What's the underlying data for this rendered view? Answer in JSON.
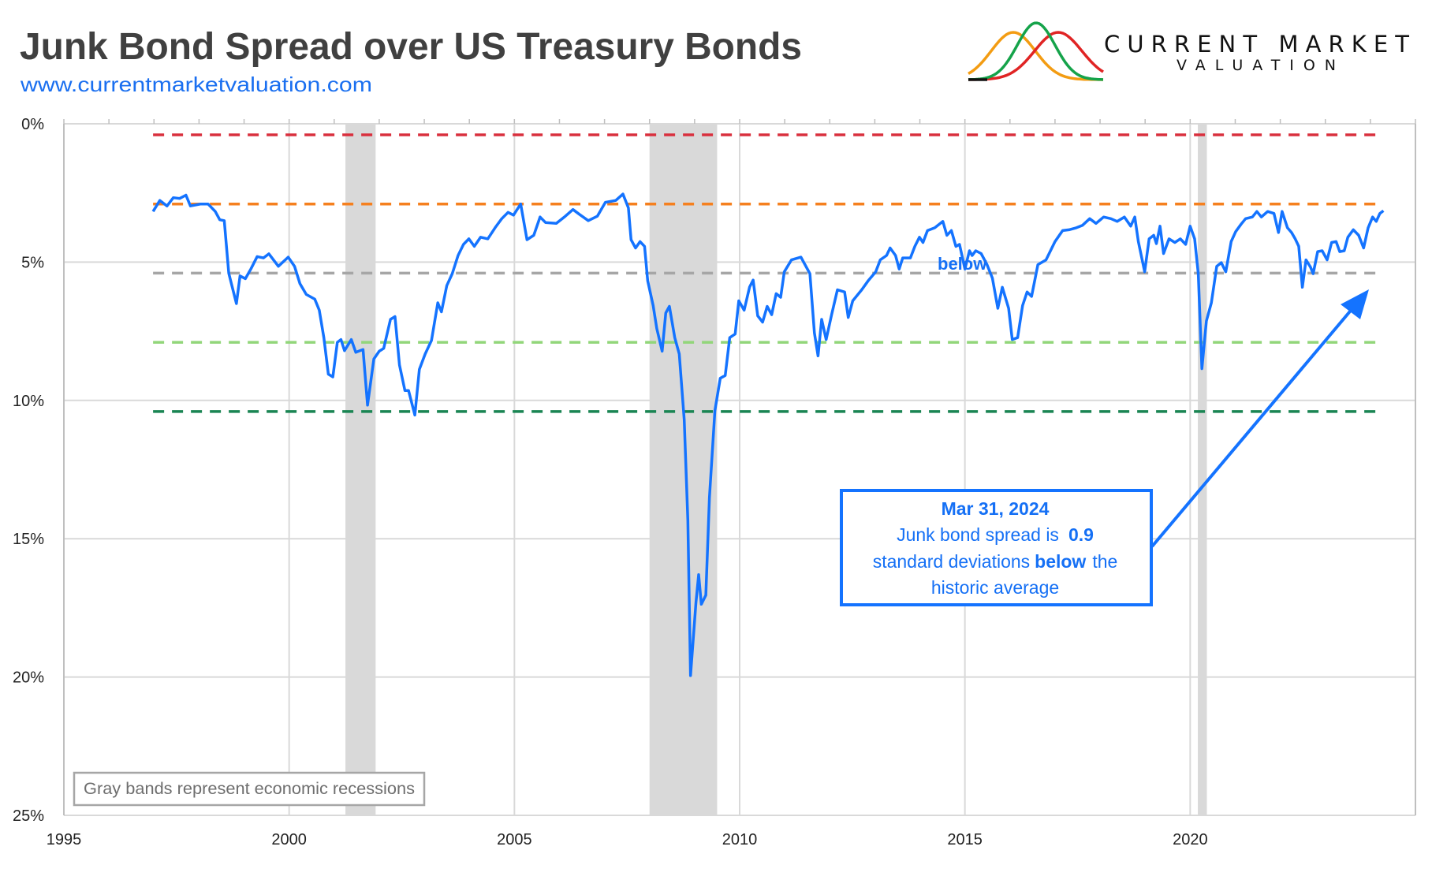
{
  "header": {
    "title": "Junk Bond Spread over US Treasury Bonds",
    "url": "www.currentmarketvaluation.com",
    "logo_line1": "CURRENT MARKET",
    "logo_line2": "VALUATION"
  },
  "callout": {
    "date": "Mar 31, 2024",
    "line2_a": "Junk bond spread is",
    "line2_value": "0.9",
    "line3_a": "standard deviations",
    "line3_b": "below",
    "line3_c": "the",
    "line4": "historic average"
  },
  "stray_label": "below",
  "legend_note": "Gray bands represent economic recessions",
  "colors": {
    "series": "#1473ff",
    "recession": "#d9d9d9",
    "minus2sd": "#d9303e",
    "minus1sd": "#f5801f",
    "mean": "#a6a6a6",
    "plus1sd": "#92d67a",
    "plus2sd": "#1a8553"
  },
  "chart_data": {
    "type": "line",
    "title": "Junk Bond Spread over US Treasury Bonds",
    "xlabel": "",
    "ylabel": "",
    "xlim": [
      1995,
      2025
    ],
    "ylim": [
      0,
      25
    ],
    "y_inverted": true,
    "grid": true,
    "x_ticks": [
      "1995",
      "2000",
      "2005",
      "2010",
      "2015",
      "2020"
    ],
    "y_ticks": [
      "0%",
      "5%",
      "10%",
      "15%",
      "20%",
      "25%"
    ],
    "reference_lines": [
      {
        "key": "minus2sd",
        "value": 0.4
      },
      {
        "key": "minus1sd",
        "value": 2.9
      },
      {
        "key": "mean",
        "value": 5.4
      },
      {
        "key": "plus1sd",
        "value": 7.9
      },
      {
        "key": "plus2sd",
        "value": 10.4
      }
    ],
    "recessions": [
      [
        2001.25,
        2001.92
      ],
      [
        2008.0,
        2009.5
      ],
      [
        2020.17,
        2020.37
      ]
    ],
    "series": [
      {
        "points": [
          [
            1996.98,
            3.17
          ],
          [
            1997.13,
            2.77
          ],
          [
            1997.29,
            2.97
          ],
          [
            1997.43,
            2.67
          ],
          [
            1997.57,
            2.7
          ],
          [
            1997.71,
            2.58
          ],
          [
            1997.81,
            2.97
          ],
          [
            1998.04,
            2.9
          ],
          [
            1998.2,
            2.9
          ],
          [
            1998.36,
            3.17
          ],
          [
            1998.46,
            3.47
          ],
          [
            1998.56,
            3.5
          ],
          [
            1998.66,
            5.4
          ],
          [
            1998.83,
            6.5
          ],
          [
            1998.91,
            5.5
          ],
          [
            1999.03,
            5.6
          ],
          [
            1999.15,
            5.25
          ],
          [
            1999.29,
            4.8
          ],
          [
            1999.43,
            4.85
          ],
          [
            1999.55,
            4.7
          ],
          [
            1999.76,
            5.15
          ],
          [
            1999.98,
            4.82
          ],
          [
            2000.12,
            5.15
          ],
          [
            2000.24,
            5.78
          ],
          [
            2000.38,
            6.17
          ],
          [
            2000.57,
            6.34
          ],
          [
            2000.67,
            6.74
          ],
          [
            2000.77,
            7.73
          ],
          [
            2000.87,
            9.05
          ],
          [
            2000.97,
            9.15
          ],
          [
            2001.07,
            7.9
          ],
          [
            2001.15,
            7.8
          ],
          [
            2001.23,
            8.2
          ],
          [
            2001.38,
            7.8
          ],
          [
            2001.48,
            8.26
          ],
          [
            2001.64,
            8.16
          ],
          [
            2001.74,
            10.17
          ],
          [
            2001.88,
            8.5
          ],
          [
            2002.0,
            8.22
          ],
          [
            2002.1,
            8.12
          ],
          [
            2002.25,
            7.07
          ],
          [
            2002.35,
            6.97
          ],
          [
            2002.45,
            8.72
          ],
          [
            2002.57,
            9.64
          ],
          [
            2002.65,
            9.64
          ],
          [
            2002.79,
            10.53
          ],
          [
            2002.89,
            8.88
          ],
          [
            2003.02,
            8.32
          ],
          [
            2003.16,
            7.83
          ],
          [
            2003.3,
            6.47
          ],
          [
            2003.38,
            6.8
          ],
          [
            2003.5,
            5.85
          ],
          [
            2003.62,
            5.42
          ],
          [
            2003.75,
            4.76
          ],
          [
            2003.87,
            4.36
          ],
          [
            2003.99,
            4.16
          ],
          [
            2004.11,
            4.43
          ],
          [
            2004.25,
            4.1
          ],
          [
            2004.41,
            4.16
          ],
          [
            2004.57,
            3.76
          ],
          [
            2004.72,
            3.43
          ],
          [
            2004.86,
            3.2
          ],
          [
            2004.98,
            3.3
          ],
          [
            2005.14,
            2.9
          ],
          [
            2005.28,
            4.19
          ],
          [
            2005.43,
            4.03
          ],
          [
            2005.57,
            3.37
          ],
          [
            2005.69,
            3.57
          ],
          [
            2005.93,
            3.6
          ],
          [
            2006.13,
            3.34
          ],
          [
            2006.3,
            3.1
          ],
          [
            2006.44,
            3.27
          ],
          [
            2006.64,
            3.5
          ],
          [
            2006.84,
            3.34
          ],
          [
            2007.02,
            2.84
          ],
          [
            2007.25,
            2.77
          ],
          [
            2007.41,
            2.54
          ],
          [
            2007.53,
            3.04
          ],
          [
            2007.59,
            4.19
          ],
          [
            2007.69,
            4.49
          ],
          [
            2007.79,
            4.26
          ],
          [
            2007.89,
            4.43
          ],
          [
            2007.96,
            5.68
          ],
          [
            2008.08,
            6.57
          ],
          [
            2008.16,
            7.4
          ],
          [
            2008.28,
            8.22
          ],
          [
            2008.36,
            6.84
          ],
          [
            2008.44,
            6.6
          ],
          [
            2008.56,
            7.73
          ],
          [
            2008.66,
            8.32
          ],
          [
            2008.77,
            10.7
          ],
          [
            2008.85,
            14.33
          ],
          [
            2008.91,
            19.95
          ],
          [
            2009.03,
            17.3
          ],
          [
            2009.09,
            16.3
          ],
          [
            2009.15,
            17.37
          ],
          [
            2009.25,
            17.04
          ],
          [
            2009.33,
            13.5
          ],
          [
            2009.45,
            10.37
          ],
          [
            2009.57,
            9.2
          ],
          [
            2009.68,
            9.1
          ],
          [
            2009.78,
            7.73
          ],
          [
            2009.9,
            7.6
          ],
          [
            2009.98,
            6.4
          ],
          [
            2010.1,
            6.74
          ],
          [
            2010.22,
            5.9
          ],
          [
            2010.3,
            5.65
          ],
          [
            2010.4,
            6.94
          ],
          [
            2010.51,
            7.17
          ],
          [
            2010.61,
            6.6
          ],
          [
            2010.71,
            6.9
          ],
          [
            2010.81,
            6.14
          ],
          [
            2010.91,
            6.27
          ],
          [
            2010.99,
            5.35
          ],
          [
            2011.15,
            4.92
          ],
          [
            2011.36,
            4.82
          ],
          [
            2011.56,
            5.42
          ],
          [
            2011.66,
            7.56
          ],
          [
            2011.74,
            8.39
          ],
          [
            2011.82,
            7.07
          ],
          [
            2011.92,
            7.8
          ],
          [
            2012.04,
            6.9
          ],
          [
            2012.17,
            6.0
          ],
          [
            2012.33,
            6.08
          ],
          [
            2012.41,
            7.0
          ],
          [
            2012.51,
            6.4
          ],
          [
            2012.71,
            6.0
          ],
          [
            2012.85,
            5.68
          ],
          [
            2013.02,
            5.35
          ],
          [
            2013.12,
            4.92
          ],
          [
            2013.26,
            4.76
          ],
          [
            2013.34,
            4.49
          ],
          [
            2013.46,
            4.76
          ],
          [
            2013.54,
            5.25
          ],
          [
            2013.62,
            4.85
          ],
          [
            2013.79,
            4.85
          ],
          [
            2013.89,
            4.43
          ],
          [
            2013.99,
            4.1
          ],
          [
            2014.07,
            4.29
          ],
          [
            2014.17,
            3.86
          ],
          [
            2014.33,
            3.76
          ],
          [
            2014.51,
            3.53
          ],
          [
            2014.6,
            4.03
          ],
          [
            2014.7,
            3.86
          ],
          [
            2014.8,
            4.43
          ],
          [
            2014.88,
            4.36
          ],
          [
            2015.0,
            5.25
          ],
          [
            2015.1,
            4.59
          ],
          [
            2015.16,
            4.76
          ],
          [
            2015.24,
            4.59
          ],
          [
            2015.36,
            4.69
          ],
          [
            2015.49,
            5.09
          ],
          [
            2015.61,
            5.58
          ],
          [
            2015.73,
            6.67
          ],
          [
            2015.83,
            5.91
          ],
          [
            2015.97,
            6.67
          ],
          [
            2016.05,
            7.8
          ],
          [
            2016.17,
            7.73
          ],
          [
            2016.28,
            6.57
          ],
          [
            2016.38,
            6.08
          ],
          [
            2016.48,
            6.24
          ],
          [
            2016.62,
            5.09
          ],
          [
            2016.8,
            4.92
          ],
          [
            2017.0,
            4.26
          ],
          [
            2017.17,
            3.86
          ],
          [
            2017.31,
            3.83
          ],
          [
            2017.47,
            3.76
          ],
          [
            2017.61,
            3.67
          ],
          [
            2017.77,
            3.43
          ],
          [
            2017.91,
            3.6
          ],
          [
            2018.08,
            3.37
          ],
          [
            2018.24,
            3.43
          ],
          [
            2018.38,
            3.53
          ],
          [
            2018.54,
            3.37
          ],
          [
            2018.68,
            3.7
          ],
          [
            2018.77,
            3.37
          ],
          [
            2018.85,
            4.26
          ],
          [
            2018.99,
            5.35
          ],
          [
            2019.09,
            4.16
          ],
          [
            2019.19,
            4.03
          ],
          [
            2019.25,
            4.33
          ],
          [
            2019.33,
            3.7
          ],
          [
            2019.41,
            4.69
          ],
          [
            2019.53,
            4.16
          ],
          [
            2019.66,
            4.29
          ],
          [
            2019.78,
            4.16
          ],
          [
            2019.9,
            4.36
          ],
          [
            2020.0,
            3.7
          ],
          [
            2020.1,
            4.16
          ],
          [
            2020.18,
            5.42
          ],
          [
            2020.26,
            8.85
          ],
          [
            2020.36,
            7.13
          ],
          [
            2020.47,
            6.47
          ],
          [
            2020.59,
            5.15
          ],
          [
            2020.69,
            5.02
          ],
          [
            2020.79,
            5.35
          ],
          [
            2020.91,
            4.26
          ],
          [
            2021.01,
            3.9
          ],
          [
            2021.13,
            3.63
          ],
          [
            2021.23,
            3.43
          ],
          [
            2021.38,
            3.37
          ],
          [
            2021.48,
            3.17
          ],
          [
            2021.58,
            3.37
          ],
          [
            2021.72,
            3.17
          ],
          [
            2021.86,
            3.24
          ],
          [
            2021.96,
            3.93
          ],
          [
            2022.04,
            3.17
          ],
          [
            2022.16,
            3.76
          ],
          [
            2022.25,
            3.93
          ],
          [
            2022.33,
            4.16
          ],
          [
            2022.41,
            4.43
          ],
          [
            2022.49,
            5.91
          ],
          [
            2022.57,
            4.92
          ],
          [
            2022.67,
            5.18
          ],
          [
            2022.73,
            5.42
          ],
          [
            2022.83,
            4.62
          ],
          [
            2022.93,
            4.59
          ],
          [
            2023.04,
            4.92
          ],
          [
            2023.14,
            4.29
          ],
          [
            2023.24,
            4.26
          ],
          [
            2023.32,
            4.62
          ],
          [
            2023.42,
            4.59
          ],
          [
            2023.5,
            4.1
          ],
          [
            2023.62,
            3.83
          ],
          [
            2023.74,
            4.03
          ],
          [
            2023.85,
            4.49
          ],
          [
            2023.95,
            3.76
          ],
          [
            2024.05,
            3.37
          ],
          [
            2024.13,
            3.53
          ],
          [
            2024.21,
            3.24
          ],
          [
            2024.29,
            3.14
          ]
        ]
      }
    ]
  }
}
